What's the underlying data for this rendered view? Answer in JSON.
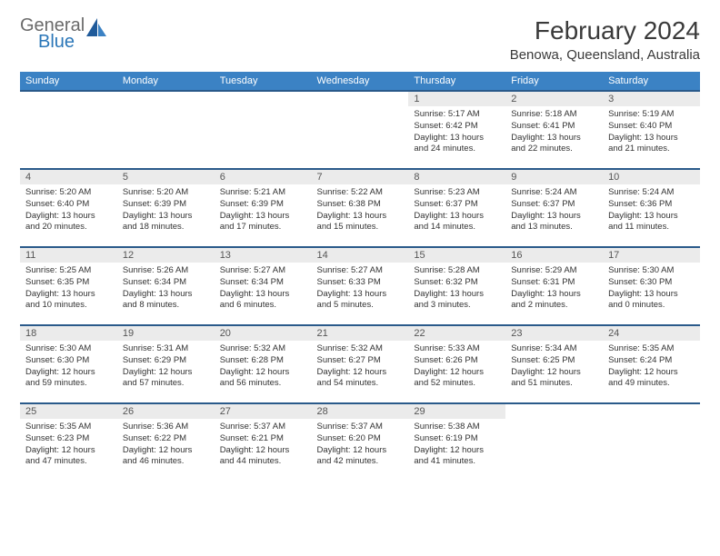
{
  "logo": {
    "text1": "General",
    "text2": "Blue"
  },
  "title": "February 2024",
  "location": "Benowa, Queensland, Australia",
  "colors": {
    "header_bg": "#3b82c4",
    "header_text": "#ffffff",
    "row_border": "#2a5a8a",
    "daynum_bg": "#ebebeb",
    "daynum_text": "#555555",
    "body_text": "#333333",
    "logo_gray": "#6a6a6a",
    "logo_blue": "#2a76b8"
  },
  "dayNames": [
    "Sunday",
    "Monday",
    "Tuesday",
    "Wednesday",
    "Thursday",
    "Friday",
    "Saturday"
  ],
  "weeks": [
    [
      null,
      null,
      null,
      null,
      {
        "n": "1",
        "sr": "5:17 AM",
        "ss": "6:42 PM",
        "dl": "13 hours and 24 minutes."
      },
      {
        "n": "2",
        "sr": "5:18 AM",
        "ss": "6:41 PM",
        "dl": "13 hours and 22 minutes."
      },
      {
        "n": "3",
        "sr": "5:19 AM",
        "ss": "6:40 PM",
        "dl": "13 hours and 21 minutes."
      }
    ],
    [
      {
        "n": "4",
        "sr": "5:20 AM",
        "ss": "6:40 PM",
        "dl": "13 hours and 20 minutes."
      },
      {
        "n": "5",
        "sr": "5:20 AM",
        "ss": "6:39 PM",
        "dl": "13 hours and 18 minutes."
      },
      {
        "n": "6",
        "sr": "5:21 AM",
        "ss": "6:39 PM",
        "dl": "13 hours and 17 minutes."
      },
      {
        "n": "7",
        "sr": "5:22 AM",
        "ss": "6:38 PM",
        "dl": "13 hours and 15 minutes."
      },
      {
        "n": "8",
        "sr": "5:23 AM",
        "ss": "6:37 PM",
        "dl": "13 hours and 14 minutes."
      },
      {
        "n": "9",
        "sr": "5:24 AM",
        "ss": "6:37 PM",
        "dl": "13 hours and 13 minutes."
      },
      {
        "n": "10",
        "sr": "5:24 AM",
        "ss": "6:36 PM",
        "dl": "13 hours and 11 minutes."
      }
    ],
    [
      {
        "n": "11",
        "sr": "5:25 AM",
        "ss": "6:35 PM",
        "dl": "13 hours and 10 minutes."
      },
      {
        "n": "12",
        "sr": "5:26 AM",
        "ss": "6:34 PM",
        "dl": "13 hours and 8 minutes."
      },
      {
        "n": "13",
        "sr": "5:27 AM",
        "ss": "6:34 PM",
        "dl": "13 hours and 6 minutes."
      },
      {
        "n": "14",
        "sr": "5:27 AM",
        "ss": "6:33 PM",
        "dl": "13 hours and 5 minutes."
      },
      {
        "n": "15",
        "sr": "5:28 AM",
        "ss": "6:32 PM",
        "dl": "13 hours and 3 minutes."
      },
      {
        "n": "16",
        "sr": "5:29 AM",
        "ss": "6:31 PM",
        "dl": "13 hours and 2 minutes."
      },
      {
        "n": "17",
        "sr": "5:30 AM",
        "ss": "6:30 PM",
        "dl": "13 hours and 0 minutes."
      }
    ],
    [
      {
        "n": "18",
        "sr": "5:30 AM",
        "ss": "6:30 PM",
        "dl": "12 hours and 59 minutes."
      },
      {
        "n": "19",
        "sr": "5:31 AM",
        "ss": "6:29 PM",
        "dl": "12 hours and 57 minutes."
      },
      {
        "n": "20",
        "sr": "5:32 AM",
        "ss": "6:28 PM",
        "dl": "12 hours and 56 minutes."
      },
      {
        "n": "21",
        "sr": "5:32 AM",
        "ss": "6:27 PM",
        "dl": "12 hours and 54 minutes."
      },
      {
        "n": "22",
        "sr": "5:33 AM",
        "ss": "6:26 PM",
        "dl": "12 hours and 52 minutes."
      },
      {
        "n": "23",
        "sr": "5:34 AM",
        "ss": "6:25 PM",
        "dl": "12 hours and 51 minutes."
      },
      {
        "n": "24",
        "sr": "5:35 AM",
        "ss": "6:24 PM",
        "dl": "12 hours and 49 minutes."
      }
    ],
    [
      {
        "n": "25",
        "sr": "5:35 AM",
        "ss": "6:23 PM",
        "dl": "12 hours and 47 minutes."
      },
      {
        "n": "26",
        "sr": "5:36 AM",
        "ss": "6:22 PM",
        "dl": "12 hours and 46 minutes."
      },
      {
        "n": "27",
        "sr": "5:37 AM",
        "ss": "6:21 PM",
        "dl": "12 hours and 44 minutes."
      },
      {
        "n": "28",
        "sr": "5:37 AM",
        "ss": "6:20 PM",
        "dl": "12 hours and 42 minutes."
      },
      {
        "n": "29",
        "sr": "5:38 AM",
        "ss": "6:19 PM",
        "dl": "12 hours and 41 minutes."
      },
      null,
      null
    ]
  ],
  "labels": {
    "sunrise": "Sunrise: ",
    "sunset": "Sunset: ",
    "daylight": "Daylight: "
  }
}
